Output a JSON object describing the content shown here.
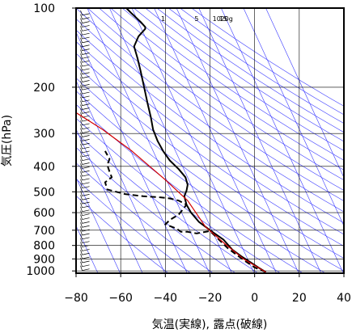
{
  "chart_data": {
    "type": "line",
    "subtype": "emagram",
    "xlabel": "気温(実線), 露点(破線)",
    "ylabel": "気圧(hPa)",
    "xlim": [
      -80,
      40
    ],
    "ylim": [
      1020,
      100
    ],
    "yscale": "log",
    "x_ticks": [
      "−80",
      "−60",
      "−40",
      "−20",
      "0",
      "20",
      "40"
    ],
    "x_tick_values": [
      -80,
      -60,
      -40,
      -20,
      0,
      20,
      40
    ],
    "y_ticks": [
      "100",
      "200",
      "300",
      "400",
      "500",
      "600",
      "700",
      "800",
      "900",
      "1000"
    ],
    "y_tick_values": [
      100,
      200,
      300,
      400,
      500,
      600,
      700,
      800,
      900,
      1000
    ],
    "mixing_ratio_labels": [
      "1",
      "5",
      "10",
      "15",
      "20g"
    ],
    "grid": true,
    "colors": {
      "temperature": "#000000",
      "dewpoint": "#000000",
      "parcel": "#d40000",
      "reference_lines": "#3a3aff",
      "grid": "#000000"
    },
    "series": [
      {
        "style": "solid",
        "color": "#000000",
        "points": [
          [
            5.0,
            1010
          ],
          [
            2.0,
            975
          ],
          [
            -2.0,
            925
          ],
          [
            -6.0,
            880
          ],
          [
            -10.0,
            830
          ],
          [
            -14.0,
            760
          ],
          [
            -20.0,
            700
          ],
          [
            -25.0,
            650
          ],
          [
            -28.5,
            600
          ],
          [
            -30.5,
            560
          ],
          [
            -31.5,
            520
          ],
          [
            -30.5,
            495
          ],
          [
            -30.0,
            470
          ],
          [
            -31.0,
            440
          ],
          [
            -34.0,
            410
          ],
          [
            -38.0,
            380
          ],
          [
            -41.0,
            350
          ],
          [
            -43.5,
            320
          ],
          [
            -45.5,
            290
          ],
          [
            -46.5,
            260
          ],
          [
            -48.0,
            230
          ],
          [
            -49.5,
            200
          ],
          [
            -51.0,
            175
          ],
          [
            -52.5,
            155
          ],
          [
            -54.0,
            140
          ],
          [
            -52.0,
            128
          ],
          [
            -49.0,
            120
          ],
          [
            -49.0,
            118
          ],
          [
            -51.0,
            113
          ],
          [
            -55.0,
            105
          ],
          [
            -57.5,
            100
          ]
        ]
      },
      {
        "style": "dashed",
        "color": "#000000",
        "points": [
          [
            5.0,
            1010
          ],
          [
            0.0,
            970
          ],
          [
            -4.0,
            920
          ],
          [
            -8.0,
            870
          ],
          [
            -12.0,
            820
          ],
          [
            -16.0,
            760
          ],
          [
            -20.0,
            705
          ],
          [
            -26.0,
            720
          ],
          [
            -30.0,
            710
          ],
          [
            -33.0,
            710
          ],
          [
            -35.0,
            690
          ],
          [
            -40.0,
            665
          ],
          [
            -38.0,
            640
          ],
          [
            -34.0,
            610
          ],
          [
            -30.5,
            560
          ],
          [
            -34.0,
            540
          ],
          [
            -38.0,
            530
          ],
          [
            -42.0,
            525
          ],
          [
            -50.0,
            520
          ],
          [
            -58.0,
            510
          ],
          [
            -62.0,
            500
          ],
          [
            -66.0,
            490
          ],
          [
            -67.0,
            460
          ],
          [
            -64.0,
            440
          ],
          [
            -65.0,
            420
          ],
          [
            -66.0,
            395
          ],
          [
            -65.0,
            375
          ],
          [
            -67.0,
            350
          ]
        ]
      },
      {
        "style": "solid",
        "color": "#d40000",
        "points": [
          [
            5.0,
            1010
          ],
          [
            -5.0,
            900
          ],
          [
            -14.0,
            780
          ],
          [
            -22.0,
            680
          ],
          [
            -30.0,
            540
          ],
          [
            -40.0,
            450
          ],
          [
            -55.0,
            350
          ],
          [
            -68.0,
            290
          ],
          [
            -80.0,
            250
          ]
        ]
      }
    ]
  }
}
